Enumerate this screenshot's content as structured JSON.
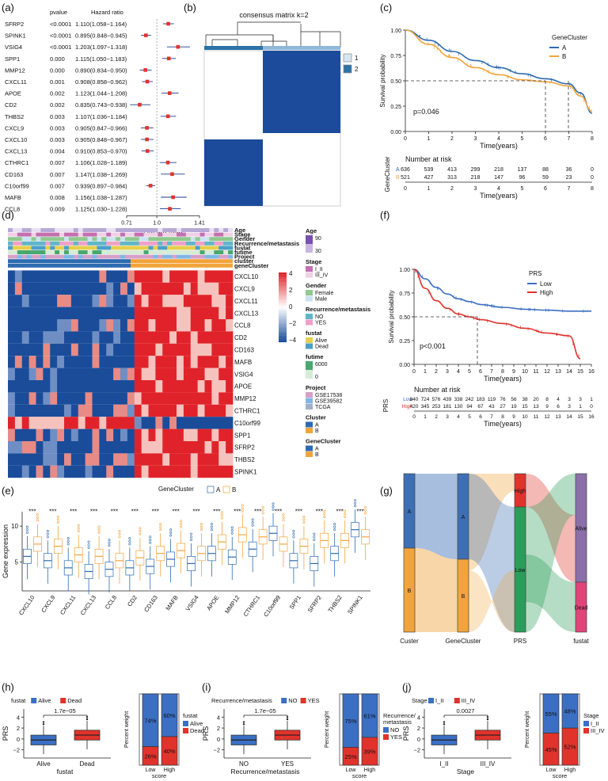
{
  "colors": {
    "clusterA": "#2d6bb0",
    "clusterB": "#f2a43c",
    "low": "#3b6fc4",
    "high": "#e0332c",
    "heatHi": "#e0232a",
    "heatLo": "#1a4c9a",
    "forest": "#e0332c"
  },
  "panels": {
    "a": "(a)",
    "b": "(b)",
    "c": "(c)",
    "d": "(d)",
    "e": "(e)",
    "f": "(f)",
    "g": "(g)",
    "h": "(h)",
    "i": "(i)",
    "j": "(j)"
  },
  "chart_data": [
    {
      "panel": "a",
      "type": "forest",
      "col_pvalue": "pvalue",
      "col_hr": "Hazard ratio",
      "xlabel": "Hazard ratio",
      "ticks": [
        "0.71",
        "1.0",
        "1.41"
      ],
      "tick_values": [
        0.71,
        1.0,
        1.41
      ],
      "genes": [
        "SFRP2",
        "SPINK1",
        "VSIG4",
        "SPP1",
        "MMP12",
        "CXCL11",
        "APOE",
        "CD2",
        "THBS2",
        "CXCL9",
        "CXCL10",
        "CXCL13",
        "CTHRC1",
        "CD163",
        "C10orf99",
        "MAFB",
        "CCL8"
      ],
      "pvalues": [
        "<0.0001",
        "<0.0001",
        "<0.0001",
        "0.000",
        "0.000",
        "0.001",
        "0.002",
        "0.002",
        "0.003",
        "0.003",
        "0.003",
        "0.004",
        "0.007",
        "0.007",
        "0.007",
        "0.008",
        "0.009"
      ],
      "hr_text": [
        "1.110(1.058−1.164)",
        "0.895(0.848−0.945)",
        "1.203(1.097−1.318)",
        "1.115(1.050−1.183)",
        "0.890(0.834−0.950)",
        "0.908(0.858−0.962)",
        "1.123(1.044−1.208)",
        "0.835(0.743−0.938)",
        "1.107(1.036−1.184)",
        "0.905(0.847−0.966)",
        "0.905(0.848−0.967)",
        "0.910(0.853−0.970)",
        "1.106(1.028−1.189)",
        "1.147(1.038−1.269)",
        "0.939(0.897−0.984)",
        "1.156(1.038−1.287)",
        "1.125(1.030−1.228)"
      ],
      "hr": [
        1.11,
        0.895,
        1.203,
        1.115,
        0.89,
        0.908,
        1.123,
        0.835,
        1.107,
        0.905,
        0.905,
        0.91,
        1.106,
        1.147,
        0.939,
        1.156,
        1.125
      ],
      "lo": [
        1.058,
        0.848,
        1.097,
        1.05,
        0.834,
        0.858,
        1.044,
        0.743,
        1.036,
        0.847,
        0.848,
        0.853,
        1.028,
        1.038,
        0.897,
        1.038,
        1.03
      ],
      "hi": [
        1.164,
        0.945,
        1.318,
        1.183,
        0.95,
        0.962,
        1.208,
        0.938,
        1.184,
        0.966,
        0.967,
        0.97,
        1.189,
        1.269,
        0.984,
        1.287,
        1.228
      ]
    },
    {
      "panel": "b",
      "type": "heatmap",
      "title": "consensus matrix k=2",
      "legend": [
        "1",
        "2"
      ]
    },
    {
      "panel": "c",
      "type": "line",
      "ylabel": "Survival probability",
      "xlabel": "Time(years)",
      "legend_title": "GeneCluster",
      "series": [
        {
          "name": "A",
          "x": [
            0,
            1,
            2,
            3,
            4,
            5,
            6,
            7,
            7.5,
            8
          ],
          "y": [
            1.0,
            0.9,
            0.79,
            0.7,
            0.63,
            0.57,
            0.52,
            0.47,
            0.38,
            0.18
          ]
        },
        {
          "name": "B",
          "x": [
            0,
            1,
            2,
            3,
            4,
            5,
            6,
            7,
            7.5,
            8
          ],
          "y": [
            1.0,
            0.86,
            0.73,
            0.63,
            0.56,
            0.51,
            0.49,
            0.45,
            0.35,
            0.2
          ]
        }
      ],
      "pvalue": "p=0.046",
      "yticks": [
        "0.00",
        "0.25",
        "0.50",
        "0.75",
        "1.00"
      ],
      "xticks": [
        "0",
        "1",
        "2",
        "3",
        "4",
        "5",
        "6",
        "7",
        "8"
      ],
      "risk_title": "Number at risk",
      "risk_ylabel": "GeneCluster",
      "risk": {
        "A": [
          "636",
          "539",
          "413",
          "299",
          "218",
          "137",
          "88",
          "36",
          "0"
        ],
        "B": [
          "521",
          "427",
          "313",
          "218",
          "147",
          "96",
          "59",
          "23",
          "0"
        ]
      }
    },
    {
      "panel": "d",
      "type": "heatmap",
      "annot_rows": [
        "Age",
        "Stage",
        "Gender",
        "Recurrence/metastasis",
        "fustat",
        "futime",
        "Project",
        "cluster",
        "geneCluster"
      ],
      "genes": [
        "CXCL10",
        "CXCL9",
        "CXCL11",
        "CXCL13",
        "CCL8",
        "CD2",
        "CD163",
        "MAFB",
        "VSIG4",
        "APOE",
        "MMP12",
        "CTHRC1",
        "C10orf99",
        "SPP1",
        "SFRP2",
        "THBS2",
        "SPINK1"
      ],
      "colorbar": [
        "4",
        "2",
        "0",
        "−2",
        "−4"
      ],
      "legends": [
        {
          "title": "Age",
          "items": [
            "90",
            "30"
          ]
        },
        {
          "title": "Stage",
          "items": [
            "I_II",
            "III_IV"
          ]
        },
        {
          "title": "Gender",
          "items": [
            "Female",
            "Male"
          ]
        },
        {
          "title": "Recurrence/metastasis",
          "items": [
            "NO",
            "YES"
          ]
        },
        {
          "title": "fustat",
          "items": [
            "Alive",
            "Dead"
          ]
        },
        {
          "title": "futime",
          "items": [
            "6000",
            "0"
          ]
        },
        {
          "title": "Project",
          "items": [
            "GSE17538",
            "GSE39582",
            "TCGA"
          ]
        },
        {
          "title": "Cluster",
          "items": [
            "A",
            "B"
          ]
        },
        {
          "title": "GeneCluster",
          "items": [
            "A",
            "B"
          ]
        }
      ]
    },
    {
      "panel": "e",
      "type": "box",
      "legend_title": "GeneCluster",
      "legend": [
        "A",
        "B"
      ],
      "ylabel": "Gene expression",
      "yticks": [
        "5",
        "10"
      ],
      "sig": "***",
      "genes": [
        "CXCL10",
        "CXCL9",
        "CXCL11",
        "CXCL13",
        "CCL8",
        "CD2",
        "CD163",
        "MAFB",
        "VSIG4",
        "APOE",
        "MMP12",
        "CTHRC1",
        "C10orf99",
        "SPP1",
        "SFRP2",
        "THBS2",
        "SPINK1"
      ],
      "medianA": [
        5.8,
        5.2,
        4.2,
        3.7,
        4.0,
        4.2,
        4.4,
        5.4,
        4.8,
        6.2,
        5.7,
        6.8,
        9.0,
        5.2,
        4.8,
        6.2,
        9.5
      ],
      "medianB": [
        7.5,
        7.2,
        6.0,
        5.8,
        5.2,
        5.6,
        6.2,
        6.6,
        6.2,
        7.8,
        8.8,
        8.5,
        7.5,
        7.2,
        8.0,
        8.0,
        8.5
      ]
    },
    {
      "panel": "f",
      "type": "line",
      "ylabel": "Survival probability",
      "xlabel": "Time(years)",
      "legend_title": "PRS",
      "pvalue": "p<0.001",
      "series": [
        {
          "name": "Low",
          "x": [
            0,
            1,
            2,
            3,
            4,
            5,
            6,
            8,
            10,
            12,
            14,
            16
          ],
          "y": [
            1,
            0.9,
            0.81,
            0.74,
            0.69,
            0.66,
            0.63,
            0.6,
            0.58,
            0.57,
            0.56,
            0.56
          ]
        },
        {
          "name": "High",
          "x": [
            0,
            1,
            2,
            3,
            4,
            5,
            6,
            8,
            10,
            12,
            14,
            15
          ],
          "y": [
            1,
            0.8,
            0.67,
            0.59,
            0.53,
            0.5,
            0.47,
            0.43,
            0.38,
            0.33,
            0.3,
            0.06
          ]
        }
      ],
      "yticks": [
        "0.00",
        "0.25",
        "0.50",
        "0.75",
        "1.00"
      ],
      "xticks": [
        "0",
        "1",
        "2",
        "3",
        "4",
        "5",
        "6",
        "7",
        "8",
        "9",
        "10",
        "11",
        "12",
        "13",
        "14",
        "15",
        "16"
      ],
      "risk_title": "Number at risk",
      "risk_ylabel": "PRS",
      "risk": {
        "Low": [
          "840",
          "724",
          "576",
          "439",
          "338",
          "242",
          "183",
          "119",
          "76",
          "56",
          "38",
          "20",
          "8",
          "4",
          "3",
          "3",
          "1"
        ],
        "High": [
          "420",
          "345",
          "253",
          "181",
          "130",
          "94",
          "67",
          "43",
          "27",
          "19",
          "15",
          "13",
          "9",
          "6",
          "3",
          "1",
          "0"
        ]
      }
    },
    {
      "panel": "g",
      "type": "sankey",
      "axes": [
        "Custer",
        "GeneCluster",
        "PRS",
        "fustat"
      ],
      "nodes": {
        "Custer": [
          "A",
          "B"
        ],
        "GeneCluster": [
          "A",
          "B"
        ],
        "PRS": [
          "High",
          "Low"
        ],
        "fustat": [
          "Alive",
          "Dead"
        ]
      }
    },
    {
      "panel": "h",
      "type": "box",
      "legend_title": "fustat",
      "legend": [
        "Alive",
        "Dead"
      ],
      "ylabel": "PRS",
      "xlabel": "fustat",
      "categories": [
        "Alive",
        "Dead"
      ],
      "pvalue": "1.7e−05",
      "yticks": [
        "−2",
        "0",
        "2",
        "4"
      ],
      "bar": {
        "ylabel": "Percent weight",
        "xlabel": "score",
        "categories": [
          "Low",
          "High"
        ],
        "legend_title": "fustat",
        "legend": [
          "Alive",
          "Dead"
        ],
        "values": [
          [
            74,
            26
          ],
          [
            60,
            40
          ]
        ],
        "labels": [
          [
            "74%",
            "26%"
          ],
          [
            "60%",
            "40%"
          ]
        ]
      }
    },
    {
      "panel": "i",
      "type": "box",
      "legend_title": "Recurrence/metastasis",
      "legend": [
        "NO",
        "YES"
      ],
      "ylabel": "PRS",
      "xlabel": "Recurrence/metastasis",
      "categories": [
        "NO",
        "YES"
      ],
      "pvalue": "1.7e−05",
      "yticks": [
        "−2",
        "0",
        "2",
        "4"
      ],
      "bar": {
        "ylabel": "Percent weight",
        "xlabel": "score",
        "categories": [
          "Low",
          "High"
        ],
        "legend_title": "Recurrence/ metastasis",
        "legend": [
          "NO",
          "YES"
        ],
        "values": [
          [
            75,
            25
          ],
          [
            61,
            39
          ]
        ],
        "labels": [
          [
            "75%",
            "25%"
          ],
          [
            "61%",
            "39%"
          ]
        ]
      }
    },
    {
      "panel": "j",
      "type": "box",
      "legend_title": "Stage",
      "legend": [
        "I_II",
        "III_IV"
      ],
      "ylabel": "PRS",
      "xlabel": "Stage",
      "categories": [
        "I_II",
        "III_IV"
      ],
      "pvalue": "0.0027",
      "yticks": [
        "−2",
        "0",
        "2",
        "4"
      ],
      "bar": {
        "ylabel": "Percent weight",
        "xlabel": "score",
        "categories": [
          "Low",
          "High"
        ],
        "legend_title": "Stage",
        "legend": [
          "I_II",
          "III_IV"
        ],
        "values": [
          [
            55,
            45
          ],
          [
            48,
            52
          ]
        ],
        "labels": [
          [
            "55%",
            "45%"
          ],
          [
            "48%",
            "52%"
          ]
        ]
      }
    }
  ]
}
